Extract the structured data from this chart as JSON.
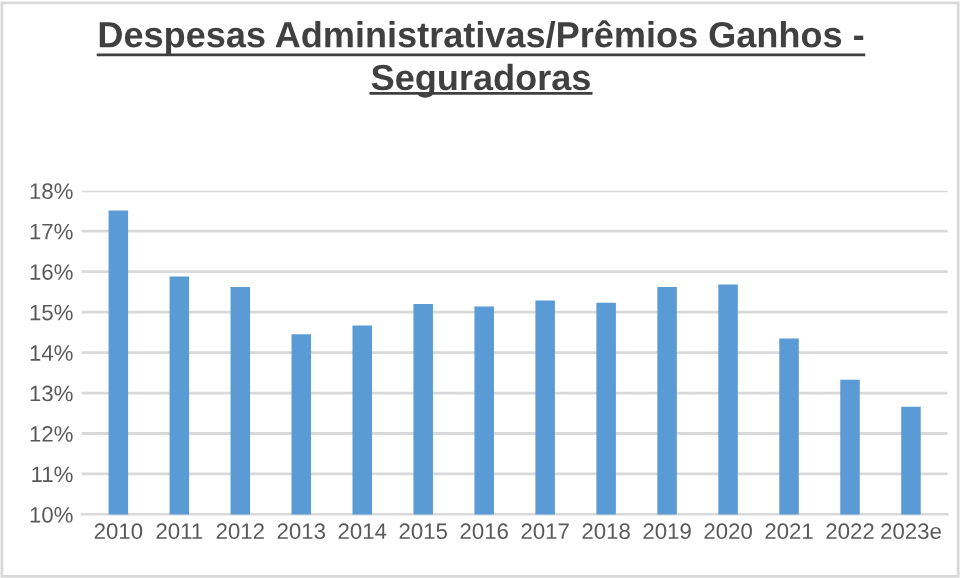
{
  "chart_data": {
    "type": "bar",
    "title": "Despesas Administrativas/Prêmios Ganhos -\nSeguradoras",
    "categories": [
      "2010",
      "2011",
      "2012",
      "2013",
      "2014",
      "2015",
      "2016",
      "2017",
      "2018",
      "2019",
      "2020",
      "2021",
      "2022",
      "2023e"
    ],
    "values": [
      17.51,
      15.88,
      15.62,
      14.45,
      14.67,
      15.2,
      15.14,
      15.29,
      15.23,
      15.62,
      15.68,
      14.35,
      13.33,
      12.66
    ],
    "color": "#5b9bd5",
    "ylim": [
      10,
      18
    ],
    "yticks": [
      {
        "value": 10,
        "label": "10%"
      },
      {
        "value": 11,
        "label": "11%"
      },
      {
        "value": 12,
        "label": "12%"
      },
      {
        "value": 13,
        "label": "13%"
      },
      {
        "value": 14,
        "label": "14%"
      },
      {
        "value": 15,
        "label": "15%"
      },
      {
        "value": 16,
        "label": "16%"
      },
      {
        "value": 17,
        "label": "17%"
      },
      {
        "value": 18,
        "label": "18%"
      }
    ],
    "grid": "y"
  }
}
